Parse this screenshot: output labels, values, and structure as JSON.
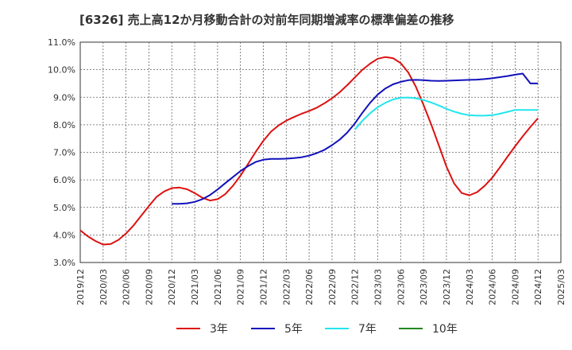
{
  "chart_data": {
    "type": "line",
    "title": "[6326]  売上高12か月移動合計の対前年同期増減率の標準偏差の推移",
    "xlabel": "",
    "ylabel": "",
    "ylim": [
      3.0,
      11.0
    ],
    "yticks": [
      "3.0%",
      "4.0%",
      "5.0%",
      "6.0%",
      "7.0%",
      "8.0%",
      "9.0%",
      "10.0%",
      "11.0%"
    ],
    "xticks": [
      "2019/12",
      "2020/03",
      "2020/06",
      "2020/09",
      "2020/12",
      "2021/03",
      "2021/06",
      "2021/09",
      "2021/12",
      "2022/03",
      "2022/06",
      "2022/09",
      "2022/12",
      "2023/03",
      "2023/06",
      "2023/09",
      "2023/12",
      "2024/03",
      "2024/06",
      "2024/09",
      "2024/12",
      "2025/03"
    ],
    "grid": true,
    "legend_position": "bottom",
    "series": [
      {
        "name": "3年",
        "color": "#dd1111",
        "x": [
          "2019/12",
          "2020/01",
          "2020/02",
          "2020/03",
          "2020/04",
          "2020/05",
          "2020/06",
          "2020/07",
          "2020/08",
          "2020/09",
          "2020/10",
          "2020/11",
          "2020/12",
          "2021/01",
          "2021/02",
          "2021/03",
          "2021/04",
          "2021/05",
          "2021/06",
          "2021/07",
          "2021/08",
          "2021/09",
          "2021/10",
          "2021/11",
          "2021/12",
          "2022/01",
          "2022/02",
          "2022/03",
          "2022/04",
          "2022/05",
          "2022/06",
          "2022/07",
          "2022/08",
          "2022/09",
          "2022/10",
          "2022/11",
          "2022/12",
          "2023/01",
          "2023/02",
          "2023/03",
          "2023/04",
          "2023/05",
          "2023/06",
          "2023/07",
          "2023/08",
          "2023/09",
          "2023/10",
          "2023/11",
          "2023/12",
          "2024/01",
          "2024/02",
          "2024/03",
          "2024/04",
          "2024/05",
          "2024/06",
          "2024/07",
          "2024/08",
          "2024/09",
          "2024/10",
          "2024/11",
          "2024/12"
        ],
        "values": [
          4.17,
          3.95,
          3.78,
          3.65,
          3.67,
          3.82,
          4.05,
          4.35,
          4.7,
          5.05,
          5.38,
          5.58,
          5.7,
          5.72,
          5.66,
          5.52,
          5.35,
          5.25,
          5.3,
          5.48,
          5.78,
          6.15,
          6.58,
          7.02,
          7.42,
          7.75,
          7.98,
          8.15,
          8.28,
          8.4,
          8.5,
          8.62,
          8.78,
          8.96,
          9.18,
          9.44,
          9.72,
          10.0,
          10.22,
          10.4,
          10.46,
          10.42,
          10.24,
          9.9,
          9.38,
          8.72,
          8.02,
          7.26,
          6.48,
          5.87,
          5.52,
          5.44,
          5.55,
          5.78,
          6.08,
          6.45,
          6.84,
          7.22,
          7.58,
          7.92,
          8.24
        ]
      },
      {
        "name": "5年",
        "color": "#1111bb",
        "x": [
          "2020/12",
          "2021/01",
          "2021/02",
          "2021/03",
          "2021/04",
          "2021/05",
          "2021/06",
          "2021/07",
          "2021/08",
          "2021/09",
          "2021/10",
          "2021/11",
          "2021/12",
          "2022/01",
          "2022/02",
          "2022/03",
          "2022/04",
          "2022/05",
          "2022/06",
          "2022/07",
          "2022/08",
          "2022/09",
          "2022/10",
          "2022/11",
          "2022/12",
          "2023/01",
          "2023/02",
          "2023/03",
          "2023/04",
          "2023/05",
          "2023/06",
          "2023/07",
          "2023/08",
          "2023/09",
          "2023/10",
          "2023/11",
          "2023/12",
          "2024/01",
          "2024/02",
          "2024/03",
          "2024/04",
          "2024/05",
          "2024/06",
          "2024/07",
          "2024/08",
          "2024/09",
          "2024/10",
          "2024/11",
          "2024/12"
        ],
        "values": [
          5.13,
          5.13,
          5.15,
          5.2,
          5.3,
          5.45,
          5.65,
          5.88,
          6.1,
          6.32,
          6.5,
          6.65,
          6.73,
          6.76,
          6.76,
          6.77,
          6.79,
          6.82,
          6.88,
          6.97,
          7.09,
          7.26,
          7.46,
          7.72,
          8.05,
          8.44,
          8.8,
          9.1,
          9.32,
          9.47,
          9.56,
          9.62,
          9.63,
          9.62,
          9.6,
          9.59,
          9.6,
          9.61,
          9.62,
          9.63,
          9.64,
          9.66,
          9.69,
          9.73,
          9.77,
          9.82,
          9.86,
          9.5,
          9.5
        ],
        "values_note": ""
      },
      {
        "name": "7年",
        "color": "#22e5ee",
        "x": [
          "2022/12",
          "2023/01",
          "2023/02",
          "2023/03",
          "2023/04",
          "2023/05",
          "2023/06",
          "2023/07",
          "2023/08",
          "2023/09",
          "2023/10",
          "2023/11",
          "2023/12",
          "2024/01",
          "2024/02",
          "2024/03",
          "2024/04",
          "2024/05",
          "2024/06",
          "2024/07",
          "2024/08",
          "2024/09",
          "2024/10",
          "2024/11",
          "2024/12"
        ],
        "values": [
          7.83,
          8.15,
          8.42,
          8.64,
          8.8,
          8.92,
          8.98,
          8.99,
          8.96,
          8.9,
          8.81,
          8.7,
          8.58,
          8.48,
          8.4,
          8.35,
          8.33,
          8.33,
          8.35,
          8.4,
          8.47,
          8.54,
          8.54,
          8.54,
          8.54
        ]
      },
      {
        "name": "10年",
        "color": "#228822",
        "x": [],
        "values": []
      }
    ]
  }
}
